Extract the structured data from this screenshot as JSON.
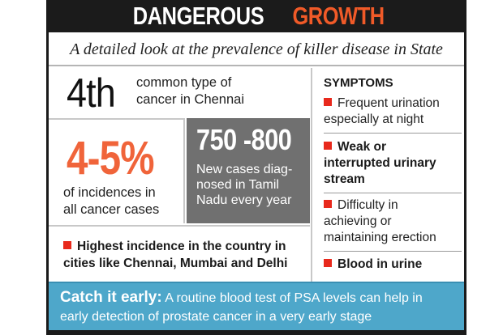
{
  "banner": {
    "word1": "DANGEROUS",
    "word2": "GROWTH"
  },
  "subtitle": "A detailed look at the prevalence of killer disease in State",
  "rank": {
    "value": "4th",
    "line1": "common type of",
    "line2": "cancer  in Chennai"
  },
  "incidence_pct": {
    "value": "4-5%",
    "line1": "of incidences in",
    "line2": "all cancer cases"
  },
  "new_cases": {
    "value": "750 -800",
    "lines": [
      "New cases diag-",
      "nosed in Tamil",
      "Nadu every year"
    ]
  },
  "highest_incidence": {
    "line1": "Highest incidence in the country in",
    "line2": "cities like Chennai, Mumbai and Delhi"
  },
  "symptoms": {
    "title": "SYMPTOMS",
    "items": [
      {
        "lines": [
          "Frequent urination",
          "especially at night"
        ]
      },
      {
        "lines": [
          "Weak or",
          "interrupted urinary",
          "stream"
        ]
      },
      {
        "lines": [
          "Difficulty in",
          "achieving or",
          "maintaining erection"
        ]
      },
      {
        "lines": [
          "Blood in urine"
        ]
      }
    ]
  },
  "footer": {
    "lead": "Catch it early:",
    "text": "A routine blood test of PSA levels can help in",
    "text2": "early detection of prostate cancer in a very early stage"
  },
  "colors": {
    "accent": "#f05a28",
    "bullet": "#e8291c",
    "footer_bg": "#4ea7ca",
    "dark_box": "#707070"
  }
}
